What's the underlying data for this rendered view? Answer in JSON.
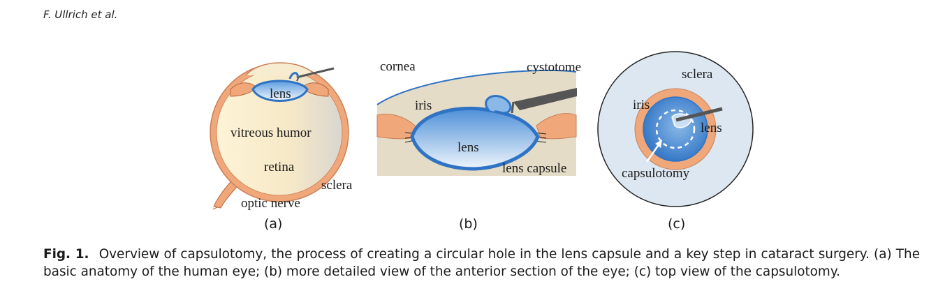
{
  "header": {
    "running_head": "F. Ullrich et al."
  },
  "figure": {
    "panel_a": {
      "labels": {
        "lens": "lens",
        "vitreous_humor": "vitreous humor",
        "retina": "retina",
        "sclera": "sclera",
        "optic_nerve": "optic nerve"
      },
      "sublabel": "(a)"
    },
    "panel_b": {
      "labels": {
        "cornea": "cornea",
        "cystotome": "cystotome",
        "iris": "iris",
        "lens": "lens",
        "lens_capsule": "lens capsule"
      },
      "sublabel": "(b)"
    },
    "panel_c": {
      "labels": {
        "sclera": "sclera",
        "iris": "iris",
        "lens": "lens",
        "capsulotomy": "capsulotomy"
      },
      "sublabel": "(c)"
    },
    "colors": {
      "sclera_fill": "#dde7f1",
      "iris_orange": "#f0a77a",
      "lens_blue": "#2f73c4",
      "lens_light": "#e8f1fb",
      "vitreous": "#fbeecd",
      "anterior_chamber": "#e4dcc6",
      "instrument": "#555555"
    }
  },
  "caption": {
    "label": "Fig. 1.",
    "text": "Overview of capsulotomy, the process of creating a circular hole in the lens capsule and a key step in cataract surgery. (a) The basic anatomy of the human eye; (b) more detailed view of the anterior section of the eye; (c) top view of the capsulotomy."
  }
}
